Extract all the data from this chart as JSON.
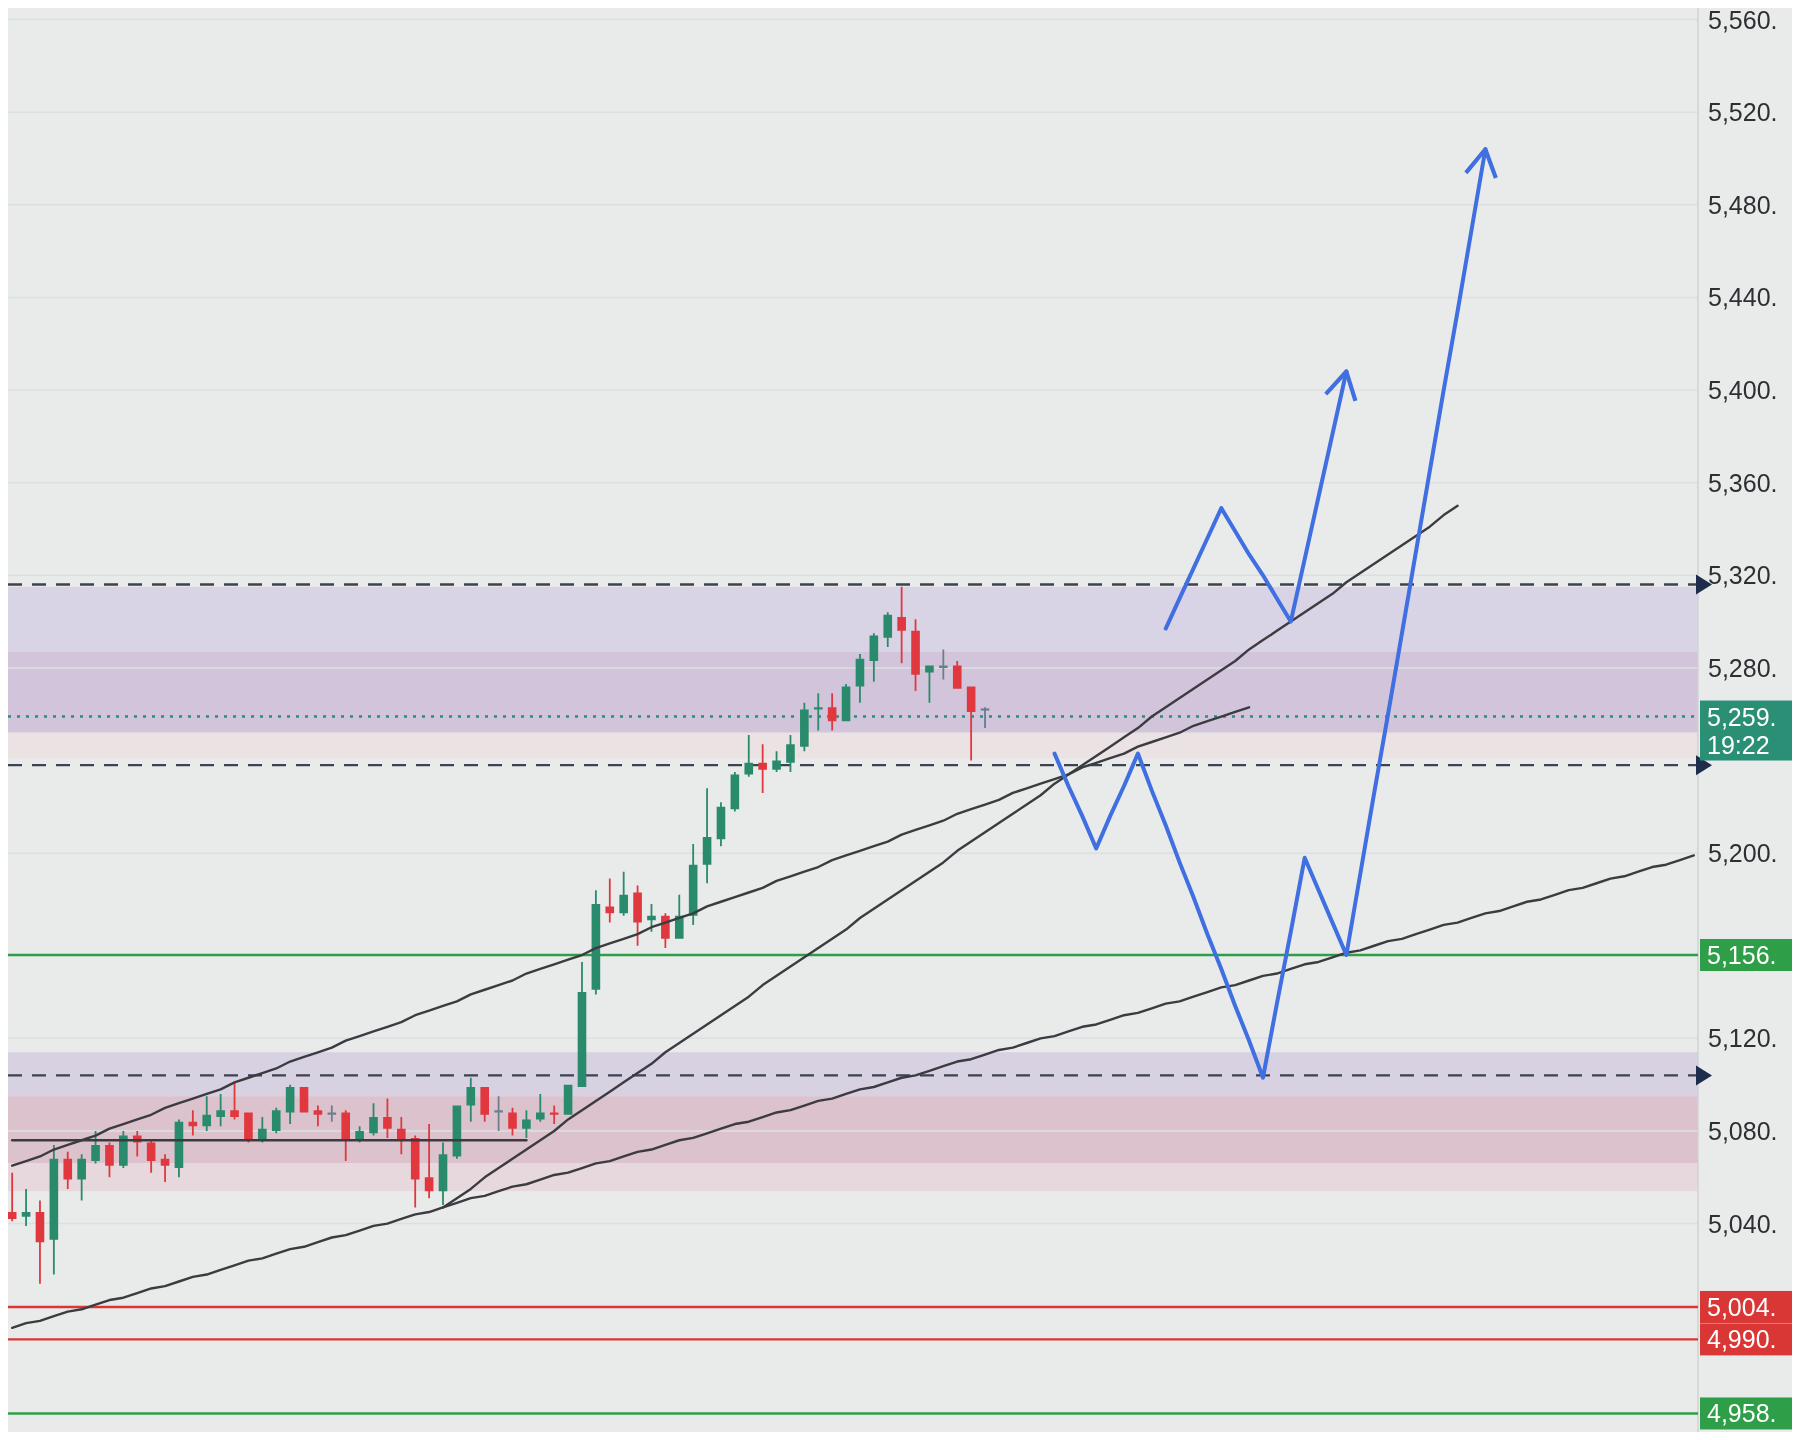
{
  "chart_data": {
    "type": "candlestick",
    "categories": [
      null,
      null,
      null,
      null,
      null,
      null,
      null,
      null,
      null,
      null,
      null,
      null,
      null,
      null,
      null,
      null,
      null,
      null,
      null,
      null,
      null,
      null,
      null,
      null,
      null,
      null,
      null,
      null,
      null,
      null,
      null,
      null,
      null,
      null,
      null,
      null,
      null,
      null,
      null,
      null,
      null,
      null,
      null,
      null,
      null,
      null,
      null,
      null,
      null,
      null,
      null,
      null,
      null,
      null,
      null,
      null,
      null,
      null,
      null,
      null,
      null,
      null,
      null,
      null,
      null,
      null,
      null,
      null,
      null,
      null,
      null,
      null,
      null,
      null,
      null,
      null,
      null,
      null,
      null,
      null,
      null,
      null,
      null,
      null,
      null,
      null,
      null,
      null,
      null,
      null,
      null,
      null,
      null,
      null,
      null,
      null,
      null,
      null,
      null,
      null,
      null,
      null,
      null,
      null,
      null,
      null,
      null,
      null,
      null,
      null,
      null,
      null,
      null,
      null,
      null,
      null,
      null,
      null,
      null,
      null,
      null,
      null
    ],
    "ohlc": [
      [
        5045,
        5062,
        5041,
        5042
      ],
      [
        5043,
        5055,
        5039,
        5045
      ],
      [
        5045,
        5050,
        5014,
        5032
      ],
      [
        5033,
        5074,
        5018,
        5068
      ],
      [
        5068,
        5071,
        5055,
        5059
      ],
      [
        5059,
        5070,
        5050,
        5068
      ],
      [
        5067,
        5080,
        5066,
        5074
      ],
      [
        5074,
        5075,
        5060,
        5065
      ],
      [
        5065,
        5080,
        5064,
        5078
      ],
      [
        5078,
        5080,
        5069,
        5075
      ],
      [
        5075,
        5076,
        5062,
        5067
      ],
      [
        5068,
        5070,
        5058,
        5065
      ],
      [
        5064,
        5085,
        5060,
        5084
      ],
      [
        5084,
        5089,
        5078,
        5082
      ],
      [
        5082,
        5095,
        5080,
        5087
      ],
      [
        5086,
        5096,
        5082,
        5089
      ],
      [
        5089,
        5101,
        5085,
        5086
      ],
      [
        5088,
        5088,
        5075,
        5076
      ],
      [
        5076,
        5086,
        5075,
        5081
      ],
      [
        5080,
        5090,
        5079,
        5089
      ],
      [
        5088,
        5100,
        5083,
        5099
      ],
      [
        5099,
        5099,
        5088,
        5088
      ],
      [
        5089,
        5091,
        5082,
        5087
      ],
      [
        5087,
        5091,
        5084,
        5088
      ],
      [
        5088,
        5089,
        5067,
        5076
      ],
      [
        5076,
        5082,
        5075,
        5080
      ],
      [
        5079,
        5092,
        5078,
        5086
      ],
      [
        5086,
        5094,
        5077,
        5081
      ],
      [
        5081,
        5086,
        5070,
        5076
      ],
      [
        5077,
        5078,
        5047,
        5059
      ],
      [
        5060,
        5083,
        5051,
        5054
      ],
      [
        5054,
        5075,
        5048,
        5070
      ],
      [
        5069,
        5091,
        5068,
        5091
      ],
      [
        5091,
        5103,
        5084,
        5099
      ],
      [
        5099,
        5099,
        5084,
        5087
      ],
      [
        5088,
        5095,
        5080,
        5089
      ],
      [
        5088,
        5090,
        5078,
        5081
      ],
      [
        5081,
        5089,
        5077,
        5085
      ],
      [
        5085,
        5096,
        5084,
        5088
      ],
      [
        5088,
        5091,
        5083,
        5087
      ],
      [
        5087,
        5100,
        5087,
        5100
      ],
      [
        5099,
        5153,
        5099,
        5140
      ],
      [
        5141,
        5184,
        5139,
        5178
      ],
      [
        5177,
        5189,
        5170,
        5174
      ],
      [
        5174,
        5192,
        5173,
        5182
      ],
      [
        5183,
        5186,
        5160,
        5170
      ],
      [
        5171,
        5178,
        5166,
        5173
      ],
      [
        5173,
        5174,
        5159,
        5163
      ],
      [
        5163,
        5182,
        5163,
        5173
      ],
      [
        5173,
        5204,
        5169,
        5195
      ],
      [
        5195,
        5228,
        5187,
        5207
      ],
      [
        5206,
        5222,
        5203,
        5220
      ],
      [
        5219,
        5235,
        5218,
        5234
      ],
      [
        5234,
        5251,
        5233,
        5239
      ],
      [
        5239,
        5247,
        5226,
        5236
      ],
      [
        5236,
        5244,
        5235,
        5240
      ],
      [
        5239,
        5251,
        5235,
        5247
      ],
      [
        5246,
        5265,
        5244,
        5262
      ],
      [
        5262,
        5269,
        5253,
        5263
      ],
      [
        5263,
        5269,
        5253,
        5257
      ],
      [
        5257,
        5273,
        5257,
        5272
      ],
      [
        5272,
        5286,
        5265,
        5284
      ],
      [
        5283,
        5295,
        5274,
        5294
      ],
      [
        5293,
        5304,
        5289,
        5303
      ],
      [
        5302,
        5315,
        5282,
        5296
      ],
      [
        5296,
        5301,
        5270,
        5277
      ],
      [
        5278,
        5281,
        5265,
        5281
      ],
      [
        5280,
        5288,
        5275,
        5281
      ],
      [
        5281,
        5283,
        5271,
        5271
      ],
      [
        5272,
        5272,
        5240,
        5261
      ],
      [
        5262,
        5263,
        5254,
        5262
      ],
      null,
      null,
      null,
      null,
      null,
      null,
      null,
      null,
      null,
      null,
      null,
      null,
      null,
      null,
      null,
      null,
      null,
      null,
      null,
      null,
      null,
      null,
      null,
      null,
      null,
      null,
      null,
      null,
      null,
      null,
      null,
      null,
      null,
      null,
      null,
      null,
      null,
      null,
      null,
      null,
      null,
      null,
      null,
      null,
      null,
      null,
      null,
      null,
      null,
      null,
      null
    ],
    "colors": [
      "#e0383e",
      "#2a8a6c",
      "#e0383e",
      "#2a8a6c",
      "#e0383e",
      "#2a8a6c",
      "#2a8a6c",
      "#e0383e",
      "#2a8a6c",
      "#e0383e",
      "#e0383e",
      "#e0383e",
      "#2a8a6c",
      "#e0383e",
      "#2a8a6c",
      "#2a8a6c",
      "#e0383e",
      "#e0383e",
      "#2a8a6c",
      "#2a8a6c",
      "#2a8a6c",
      "#e0383e",
      "#e0383e",
      "#6e7f8c",
      "#e0383e",
      "#2a8a6c",
      "#2a8a6c",
      "#e0383e",
      "#e0383e",
      "#e0383e",
      "#e0383e",
      "#2a8a6c",
      "#2a8a6c",
      "#2a8a6c",
      "#e0383e",
      "#6e7f8c",
      "#e0383e",
      "#2a8a6c",
      "#2a8a6c",
      "#e0383e",
      "#2a8a6c",
      "#2a8a6c",
      "#2a8a6c",
      "#e0383e",
      "#2a8a6c",
      "#e0383e",
      "#2a8a6c",
      "#e0383e",
      "#2a8a6c",
      "#2a8a6c",
      "#2a8a6c",
      "#2a8a6c",
      "#2a8a6c",
      "#2a8a6c",
      "#e0383e",
      "#2a8a6c",
      "#2a8a6c",
      "#2a8a6c",
      "#2a8a6c",
      "#e0383e",
      "#2a8a6c",
      "#2a8a6c",
      "#2a8a6c",
      "#2a8a6c",
      "#e0383e",
      "#e0383e",
      "#2a8a6c",
      "#6e7f8c",
      "#e0383e",
      "#e0383e",
      "#5f7d96",
      null,
      null,
      null,
      null,
      null,
      null,
      null,
      null,
      null,
      null,
      null,
      null,
      null,
      null,
      null,
      null,
      null,
      null,
      null,
      null,
      null,
      null,
      null,
      null,
      null,
      null,
      null,
      null,
      null,
      null,
      null,
      null,
      null,
      null,
      null,
      null,
      null,
      null,
      null,
      null,
      null,
      null,
      null,
      null,
      null,
      null,
      null,
      null,
      null,
      null,
      null
    ],
    "series": [
      {
        "type": "line",
        "color": "#3b3b40",
        "values": [
          5065,
          5067,
          5069,
          5072,
          5074,
          5076,
          5078,
          5081,
          5083,
          5085,
          5087,
          5090,
          5092,
          5094,
          5096,
          5098,
          5101,
          5103,
          5105,
          5107,
          5110,
          5112,
          5114,
          5116,
          5119,
          5121,
          5123,
          5125,
          5127,
          5130,
          5132,
          5134,
          5136,
          5139,
          5141,
          5143,
          5145,
          5148,
          5150,
          5152,
          5154,
          5156,
          5159,
          5161,
          5163,
          5165,
          5168,
          5170,
          5172,
          5174,
          5177,
          5179,
          5181,
          5183,
          5185,
          5188,
          5190,
          5192,
          5194,
          5197,
          5199,
          5201,
          5203,
          5205,
          5208,
          5210,
          5212,
          5214,
          5217,
          5219,
          5221,
          5223,
          5226,
          5228,
          5230,
          5232,
          5234,
          5237,
          5239,
          5241,
          5243,
          5246,
          5248,
          5250,
          5252,
          5255,
          5257,
          5259,
          5261,
          5263,
          null,
          null,
          null,
          null,
          null,
          null,
          null,
          null,
          null,
          null,
          null,
          null,
          null,
          null,
          null,
          null,
          null,
          null,
          null,
          null,
          null,
          null,
          null,
          null,
          null,
          null,
          null,
          null,
          null,
          null,
          null,
          null
        ]
      },
      {
        "type": "line",
        "color": "#3b3b40",
        "values": [
          null,
          null,
          null,
          null,
          null,
          null,
          null,
          null,
          null,
          null,
          null,
          null,
          null,
          null,
          null,
          null,
          null,
          null,
          null,
          null,
          null,
          null,
          null,
          null,
          null,
          null,
          null,
          null,
          null,
          null,
          null,
          5047,
          5051,
          5055,
          5060,
          5064,
          5068,
          5072,
          5076,
          5080,
          5085,
          5089,
          5093,
          5097,
          5101,
          5105,
          5109,
          5114,
          5118,
          5122,
          5126,
          5130,
          5134,
          5138,
          5143,
          5147,
          5151,
          5155,
          5159,
          5163,
          5167,
          5172,
          5176,
          5180,
          5184,
          5188,
          5192,
          5196,
          5201,
          5205,
          5209,
          5213,
          5217,
          5221,
          5225,
          5230,
          5234,
          5238,
          5242,
          5246,
          5250,
          5254,
          5259,
          5263,
          5267,
          5271,
          5275,
          5279,
          5283,
          5288,
          5292,
          5296,
          5300,
          5304,
          5308,
          5312,
          5317,
          5321,
          5325,
          5329,
          5333,
          5337,
          5341,
          5346,
          5350,
          null,
          null,
          null,
          null,
          null,
          null,
          null,
          null,
          null,
          null,
          null,
          null,
          null,
          null,
          null,
          null,
          null
        ]
      },
      {
        "type": "line",
        "color": "#3b3b40",
        "values": [
          4995,
          4997,
          4998,
          5000,
          5002,
          5003,
          5005,
          5007,
          5008,
          5010,
          5012,
          5013,
          5015,
          5017,
          5018,
          5020,
          5022,
          5024,
          5025,
          5027,
          5029,
          5030,
          5032,
          5034,
          5035,
          5037,
          5039,
          5040,
          5042,
          5044,
          5045,
          5047,
          5049,
          5051,
          5052,
          5054,
          5056,
          5057,
          5059,
          5061,
          5062,
          5064,
          5066,
          5067,
          5069,
          5071,
          5072,
          5074,
          5076,
          5077,
          5079,
          5081,
          5083,
          5084,
          5086,
          5088,
          5089,
          5091,
          5093,
          5094,
          5096,
          5098,
          5099,
          5101,
          5103,
          5104,
          5106,
          5108,
          5110,
          5111,
          5113,
          5115,
          5116,
          5118,
          5120,
          5121,
          5123,
          5125,
          5126,
          5128,
          5130,
          5131,
          5133,
          5135,
          5136,
          5138,
          5140,
          5142,
          5143,
          5145,
          5147,
          5148,
          5150,
          5152,
          5153,
          5155,
          5157,
          5158,
          5160,
          5162,
          5163,
          5165,
          5167,
          5169,
          5170,
          5172,
          5174,
          5175,
          5177,
          5179,
          5180,
          5182,
          5184,
          5185,
          5187,
          5189,
          5190,
          5192,
          5194,
          5195,
          5197,
          5199
        ]
      },
      {
        "type": "line",
        "color": "#3b3b40",
        "values": [
          5076,
          5076,
          5076,
          5076,
          5076,
          5076,
          5076,
          5076,
          5076,
          5076,
          5076,
          5076,
          5076,
          5076,
          5076,
          5076,
          5076,
          5076,
          5076,
          5076,
          5076,
          5076,
          5076,
          5076,
          5076,
          5076,
          5076,
          5076,
          5076,
          5076,
          5076,
          5076,
          5076,
          5076,
          5076,
          5076,
          5076,
          5076,
          null,
          null,
          null,
          null,
          null,
          null,
          null,
          null,
          null,
          null,
          null,
          null,
          null,
          null,
          null,
          null,
          null,
          null,
          null,
          null,
          null,
          null,
          null,
          null,
          null,
          null,
          null,
          null,
          null,
          null,
          null,
          null,
          null,
          null,
          null,
          null,
          null,
          null,
          null,
          null,
          null,
          null,
          null,
          null,
          null,
          null,
          null,
          null,
          null,
          null,
          null,
          null,
          null,
          null,
          null,
          null,
          null,
          null,
          null,
          null,
          null,
          null,
          null,
          null,
          null,
          null,
          null,
          null,
          null,
          null,
          null,
          null,
          null,
          null,
          null,
          null,
          null,
          null,
          null,
          null,
          null,
          null,
          null,
          null
        ]
      },
      {
        "type": "line",
        "color": "#3f6fe0",
        "values": [
          null,
          null,
          null,
          null,
          null,
          null,
          null,
          null,
          null,
          null,
          null,
          null,
          null,
          null,
          null,
          null,
          null,
          null,
          null,
          null,
          null,
          null,
          null,
          null,
          null,
          null,
          null,
          null,
          null,
          null,
          null,
          null,
          null,
          null,
          null,
          null,
          null,
          null,
          null,
          null,
          null,
          null,
          null,
          null,
          null,
          null,
          null,
          null,
          null,
          null,
          null,
          null,
          null,
          null,
          null,
          null,
          null,
          null,
          null,
          null,
          null,
          null,
          null,
          null,
          null,
          null,
          null,
          null,
          null,
          null,
          null,
          null,
          null,
          null,
          null,
          null,
          null,
          null,
          null,
          null,
          null,
          null,
          null,
          5297,
          5310,
          5323,
          5336,
          5349,
          5339,
          5329,
          5320,
          5310,
          5300,
          5327,
          5354,
          5381,
          5408,
          null,
          null,
          null,
          null,
          null,
          null,
          null,
          null,
          null,
          null,
          null,
          null,
          null,
          null,
          null,
          null,
          null,
          null,
          null,
          null,
          null,
          null,
          null,
          null,
          null
        ]
      },
      {
        "type": "line",
        "color": "#3f6fe0",
        "values": [
          null,
          null,
          null,
          null,
          null,
          null,
          null,
          null,
          null,
          null,
          null,
          null,
          null,
          null,
          null,
          null,
          null,
          null,
          null,
          null,
          null,
          null,
          null,
          null,
          null,
          null,
          null,
          null,
          null,
          null,
          null,
          null,
          null,
          null,
          null,
          null,
          null,
          null,
          null,
          null,
          null,
          null,
          null,
          null,
          null,
          null,
          null,
          null,
          null,
          null,
          null,
          null,
          null,
          null,
          null,
          null,
          null,
          null,
          null,
          null,
          null,
          null,
          null,
          null,
          null,
          null,
          null,
          null,
          null,
          null,
          null,
          null,
          null,
          null,
          null,
          5243,
          5229,
          5216,
          5202,
          5216,
          5229,
          5243,
          5227,
          5212,
          5196,
          5181,
          5165,
          5150,
          5134,
          5119,
          5103,
          5135,
          5166,
          5198,
          5184,
          5170,
          5156,
          5191,
          5226,
          5260,
          5295,
          5330,
          5365,
          5400,
          5434,
          5469,
          5504,
          null,
          null,
          null,
          null,
          null,
          null,
          null,
          null,
          null,
          null,
          null,
          null,
          null,
          null,
          null
        ]
      }
    ],
    "ylim": [
      4950,
      5565
    ],
    "yticks": [
      {
        "value": 5040,
        "label": "5,040."
      },
      {
        "value": 5080,
        "label": "5,080."
      },
      {
        "value": 5120,
        "label": "5,120."
      },
      {
        "value": 5200,
        "label": "5,200."
      },
      {
        "value": 5280,
        "label": "5,280."
      },
      {
        "value": 5320,
        "label": "5,320."
      },
      {
        "value": 5360,
        "label": "5,360."
      },
      {
        "value": 5400,
        "label": "5,400."
      },
      {
        "value": 5440,
        "label": "5,440."
      },
      {
        "value": 5480,
        "label": "5,480."
      },
      {
        "value": 5520,
        "label": "5,520."
      },
      {
        "value": 5560,
        "label": "5,560."
      }
    ],
    "bands": [
      {
        "axis": "y",
        "from": 5287,
        "to": 5315,
        "color": "#d9d3e6"
      },
      {
        "axis": "y",
        "from": 5252,
        "to": 5287,
        "color": "#d2c5db"
      },
      {
        "axis": "y",
        "from": 5241,
        "to": 5252,
        "color": "#ebe3e3"
      },
      {
        "axis": "y",
        "from": 5095,
        "to": 5114,
        "color": "#d7d1e2"
      },
      {
        "axis": "y",
        "from": 5066,
        "to": 5095,
        "color": "#dcc2cd"
      },
      {
        "axis": "y",
        "from": 5054,
        "to": 5066,
        "color": "#e6d8dc"
      }
    ],
    "ref_lines": [
      {
        "axis": "y",
        "value": 5316,
        "color": "#3c4250",
        "line_style": "dashed"
      },
      {
        "axis": "y",
        "value": 5238,
        "color": "#3c4250",
        "line_style": "dashed"
      },
      {
        "axis": "y",
        "value": 5104,
        "color": "#3c4250",
        "line_style": "dashed"
      },
      {
        "axis": "y",
        "value": 5259,
        "label": "5,259.\n19:22",
        "color": "#2a8f74",
        "line_style": "dotted"
      },
      {
        "axis": "y",
        "value": 5156,
        "label": "5,156.",
        "color": "#2e9e48"
      },
      {
        "axis": "y",
        "value": 5004,
        "label": "5,004.",
        "color": "#d93636"
      },
      {
        "axis": "y",
        "value": 4990,
        "label": "4,990.",
        "color": "#d93636"
      },
      {
        "axis": "y",
        "value": 4958,
        "label": "4,958.",
        "color": "#2e9e48"
      }
    ],
    "grid": "y",
    "tick_labels": "y"
  }
}
